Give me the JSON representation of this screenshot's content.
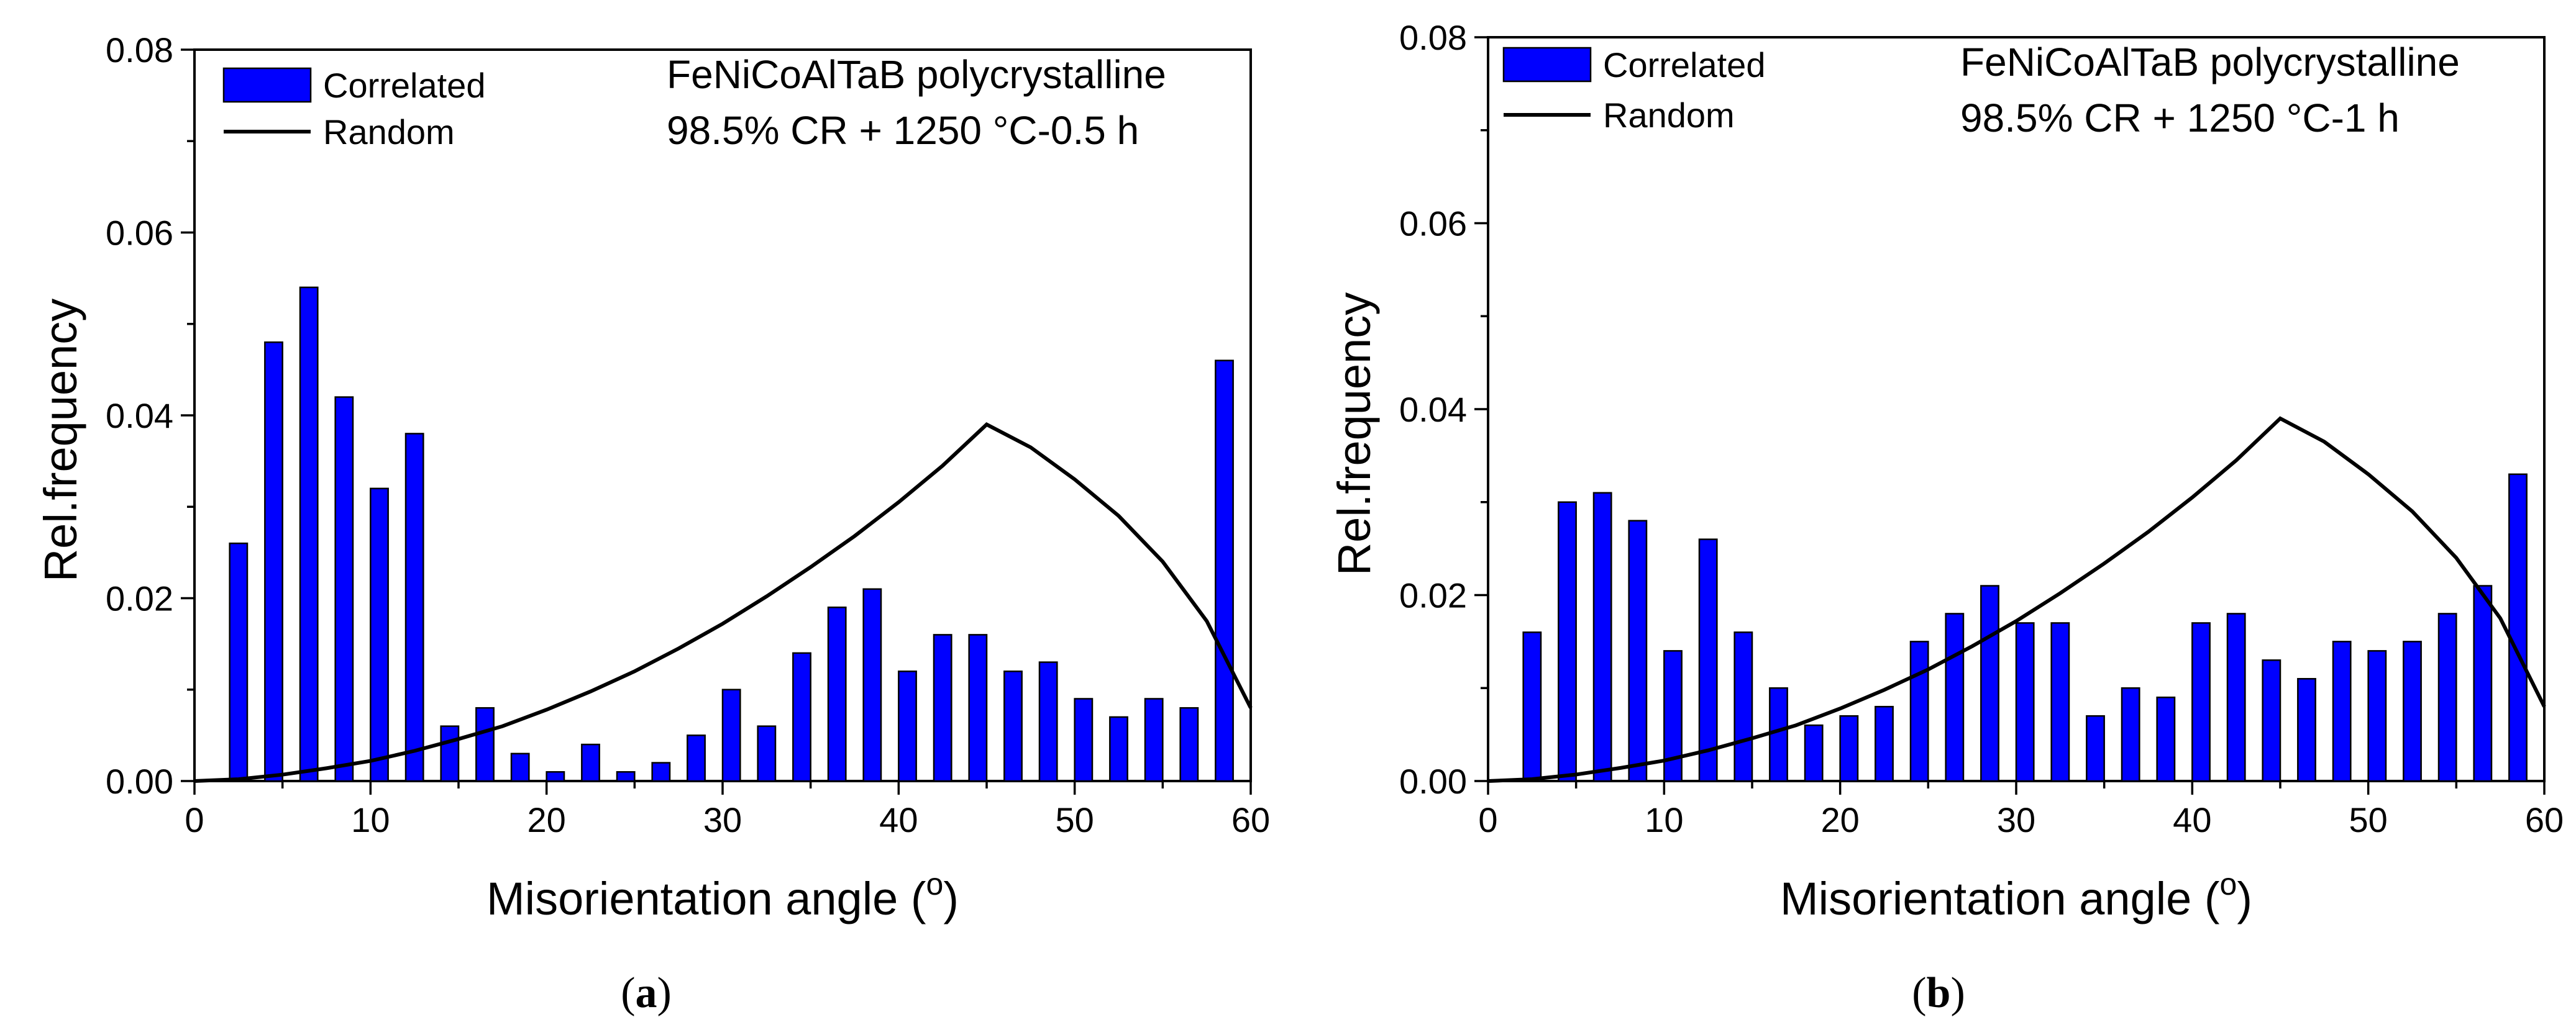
{
  "chart_data": [
    {
      "type": "bar",
      "caption": "(a)",
      "caption_letter": "a",
      "annotation": [
        "FeNiCoAlTaB polycrystalline",
        "98.5% CR + 1250 °C-0.5 h"
      ],
      "xlabel": "Misorientation angle (",
      "xlabel_sup": "o",
      "xlabel_end": ")",
      "ylabel": "Rel.frequency",
      "xlim": [
        0,
        60
      ],
      "ylim": [
        0,
        0.08
      ],
      "xticks": [
        0,
        10,
        20,
        30,
        40,
        50,
        60
      ],
      "yticks": [
        0.0,
        0.02,
        0.04,
        0.06,
        0.08
      ],
      "ytick_labels": [
        "0.00",
        "0.02",
        "0.04",
        "0.06",
        "0.08"
      ],
      "legend": {
        "position": "top-left",
        "entries": [
          "Correlated",
          "Random"
        ]
      },
      "series": [
        {
          "name": "Correlated",
          "kind": "bar",
          "color": "#0000ff",
          "x": [
            2.5,
            4.5,
            6.5,
            8.5,
            10.5,
            12.5,
            14.5,
            16.5,
            18.5,
            20.5,
            22.5,
            24.5,
            26.5,
            28.5,
            30.5,
            32.5,
            34.5,
            36.5,
            38.5,
            40.5,
            42.5,
            44.5,
            46.5,
            48.5,
            50.5,
            52.5,
            54.5,
            56.5,
            58.5
          ],
          "values": [
            0.026,
            0.048,
            0.054,
            0.042,
            0.032,
            0.038,
            0.006,
            0.008,
            0.003,
            0.001,
            0.004,
            0.001,
            0.002,
            0.005,
            0.01,
            0.006,
            0.014,
            0.019,
            0.021,
            0.012,
            0.016,
            0.016,
            0.012,
            0.013,
            0.009,
            0.007,
            0.009,
            0.008,
            0.046
          ]
        },
        {
          "name": "Random",
          "kind": "line",
          "color": "#000000",
          "x": [
            0,
            2.5,
            5,
            7.5,
            10,
            12.5,
            15,
            17.5,
            20,
            22.5,
            25,
            27.5,
            30,
            32.5,
            35,
            37.5,
            40,
            42.5,
            45,
            47.5,
            50,
            52.5,
            55,
            57.5,
            60
          ],
          "values": [
            0.0,
            0.0002,
            0.0007,
            0.0014,
            0.0022,
            0.0033,
            0.0046,
            0.006,
            0.0078,
            0.0098,
            0.012,
            0.0145,
            0.0172,
            0.0202,
            0.0234,
            0.0268,
            0.0305,
            0.0345,
            0.039,
            0.0365,
            0.033,
            0.029,
            0.024,
            0.0175,
            0.008
          ]
        }
      ]
    },
    {
      "type": "bar",
      "caption": "(b)",
      "caption_letter": "b",
      "annotation": [
        "FeNiCoAlTaB polycrystalline",
        "98.5% CR + 1250 °C-1 h"
      ],
      "xlabel": "Misorientation angle (",
      "xlabel_sup": "o",
      "xlabel_end": ")",
      "ylabel": "Rel.frequency",
      "xlim": [
        0,
        60
      ],
      "ylim": [
        0,
        0.08
      ],
      "xticks": [
        0,
        10,
        20,
        30,
        40,
        50,
        60
      ],
      "yticks": [
        0.0,
        0.02,
        0.04,
        0.06,
        0.08
      ],
      "ytick_labels": [
        "0.00",
        "0.02",
        "0.04",
        "0.06",
        "0.08"
      ],
      "legend": {
        "position": "top-left",
        "entries": [
          "Correlated",
          "Random"
        ]
      },
      "series": [
        {
          "name": "Correlated",
          "kind": "bar",
          "color": "#0000ff",
          "x": [
            2.5,
            4.5,
            6.5,
            8.5,
            10.5,
            12.5,
            14.5,
            16.5,
            18.5,
            20.5,
            22.5,
            24.5,
            26.5,
            28.5,
            30.5,
            32.5,
            34.5,
            36.5,
            38.5,
            40.5,
            42.5,
            44.5,
            46.5,
            48.5,
            50.5,
            52.5,
            54.5,
            56.5,
            58.5
          ],
          "values": [
            0.016,
            0.03,
            0.031,
            0.028,
            0.014,
            0.026,
            0.016,
            0.01,
            0.006,
            0.007,
            0.008,
            0.015,
            0.018,
            0.021,
            0.017,
            0.017,
            0.007,
            0.01,
            0.009,
            0.017,
            0.018,
            0.013,
            0.011,
            0.015,
            0.014,
            0.015,
            0.018,
            0.021,
            0.033
          ]
        },
        {
          "name": "Random",
          "kind": "line",
          "color": "#000000",
          "x": [
            0,
            2.5,
            5,
            7.5,
            10,
            12.5,
            15,
            17.5,
            20,
            22.5,
            25,
            27.5,
            30,
            32.5,
            35,
            37.5,
            40,
            42.5,
            45,
            47.5,
            50,
            52.5,
            55,
            57.5,
            60
          ],
          "values": [
            0.0,
            0.0002,
            0.0007,
            0.0014,
            0.0022,
            0.0033,
            0.0046,
            0.006,
            0.0078,
            0.0098,
            0.012,
            0.0145,
            0.0172,
            0.0202,
            0.0234,
            0.0268,
            0.0305,
            0.0345,
            0.039,
            0.0365,
            0.033,
            0.029,
            0.024,
            0.0175,
            0.008
          ]
        }
      ]
    }
  ]
}
